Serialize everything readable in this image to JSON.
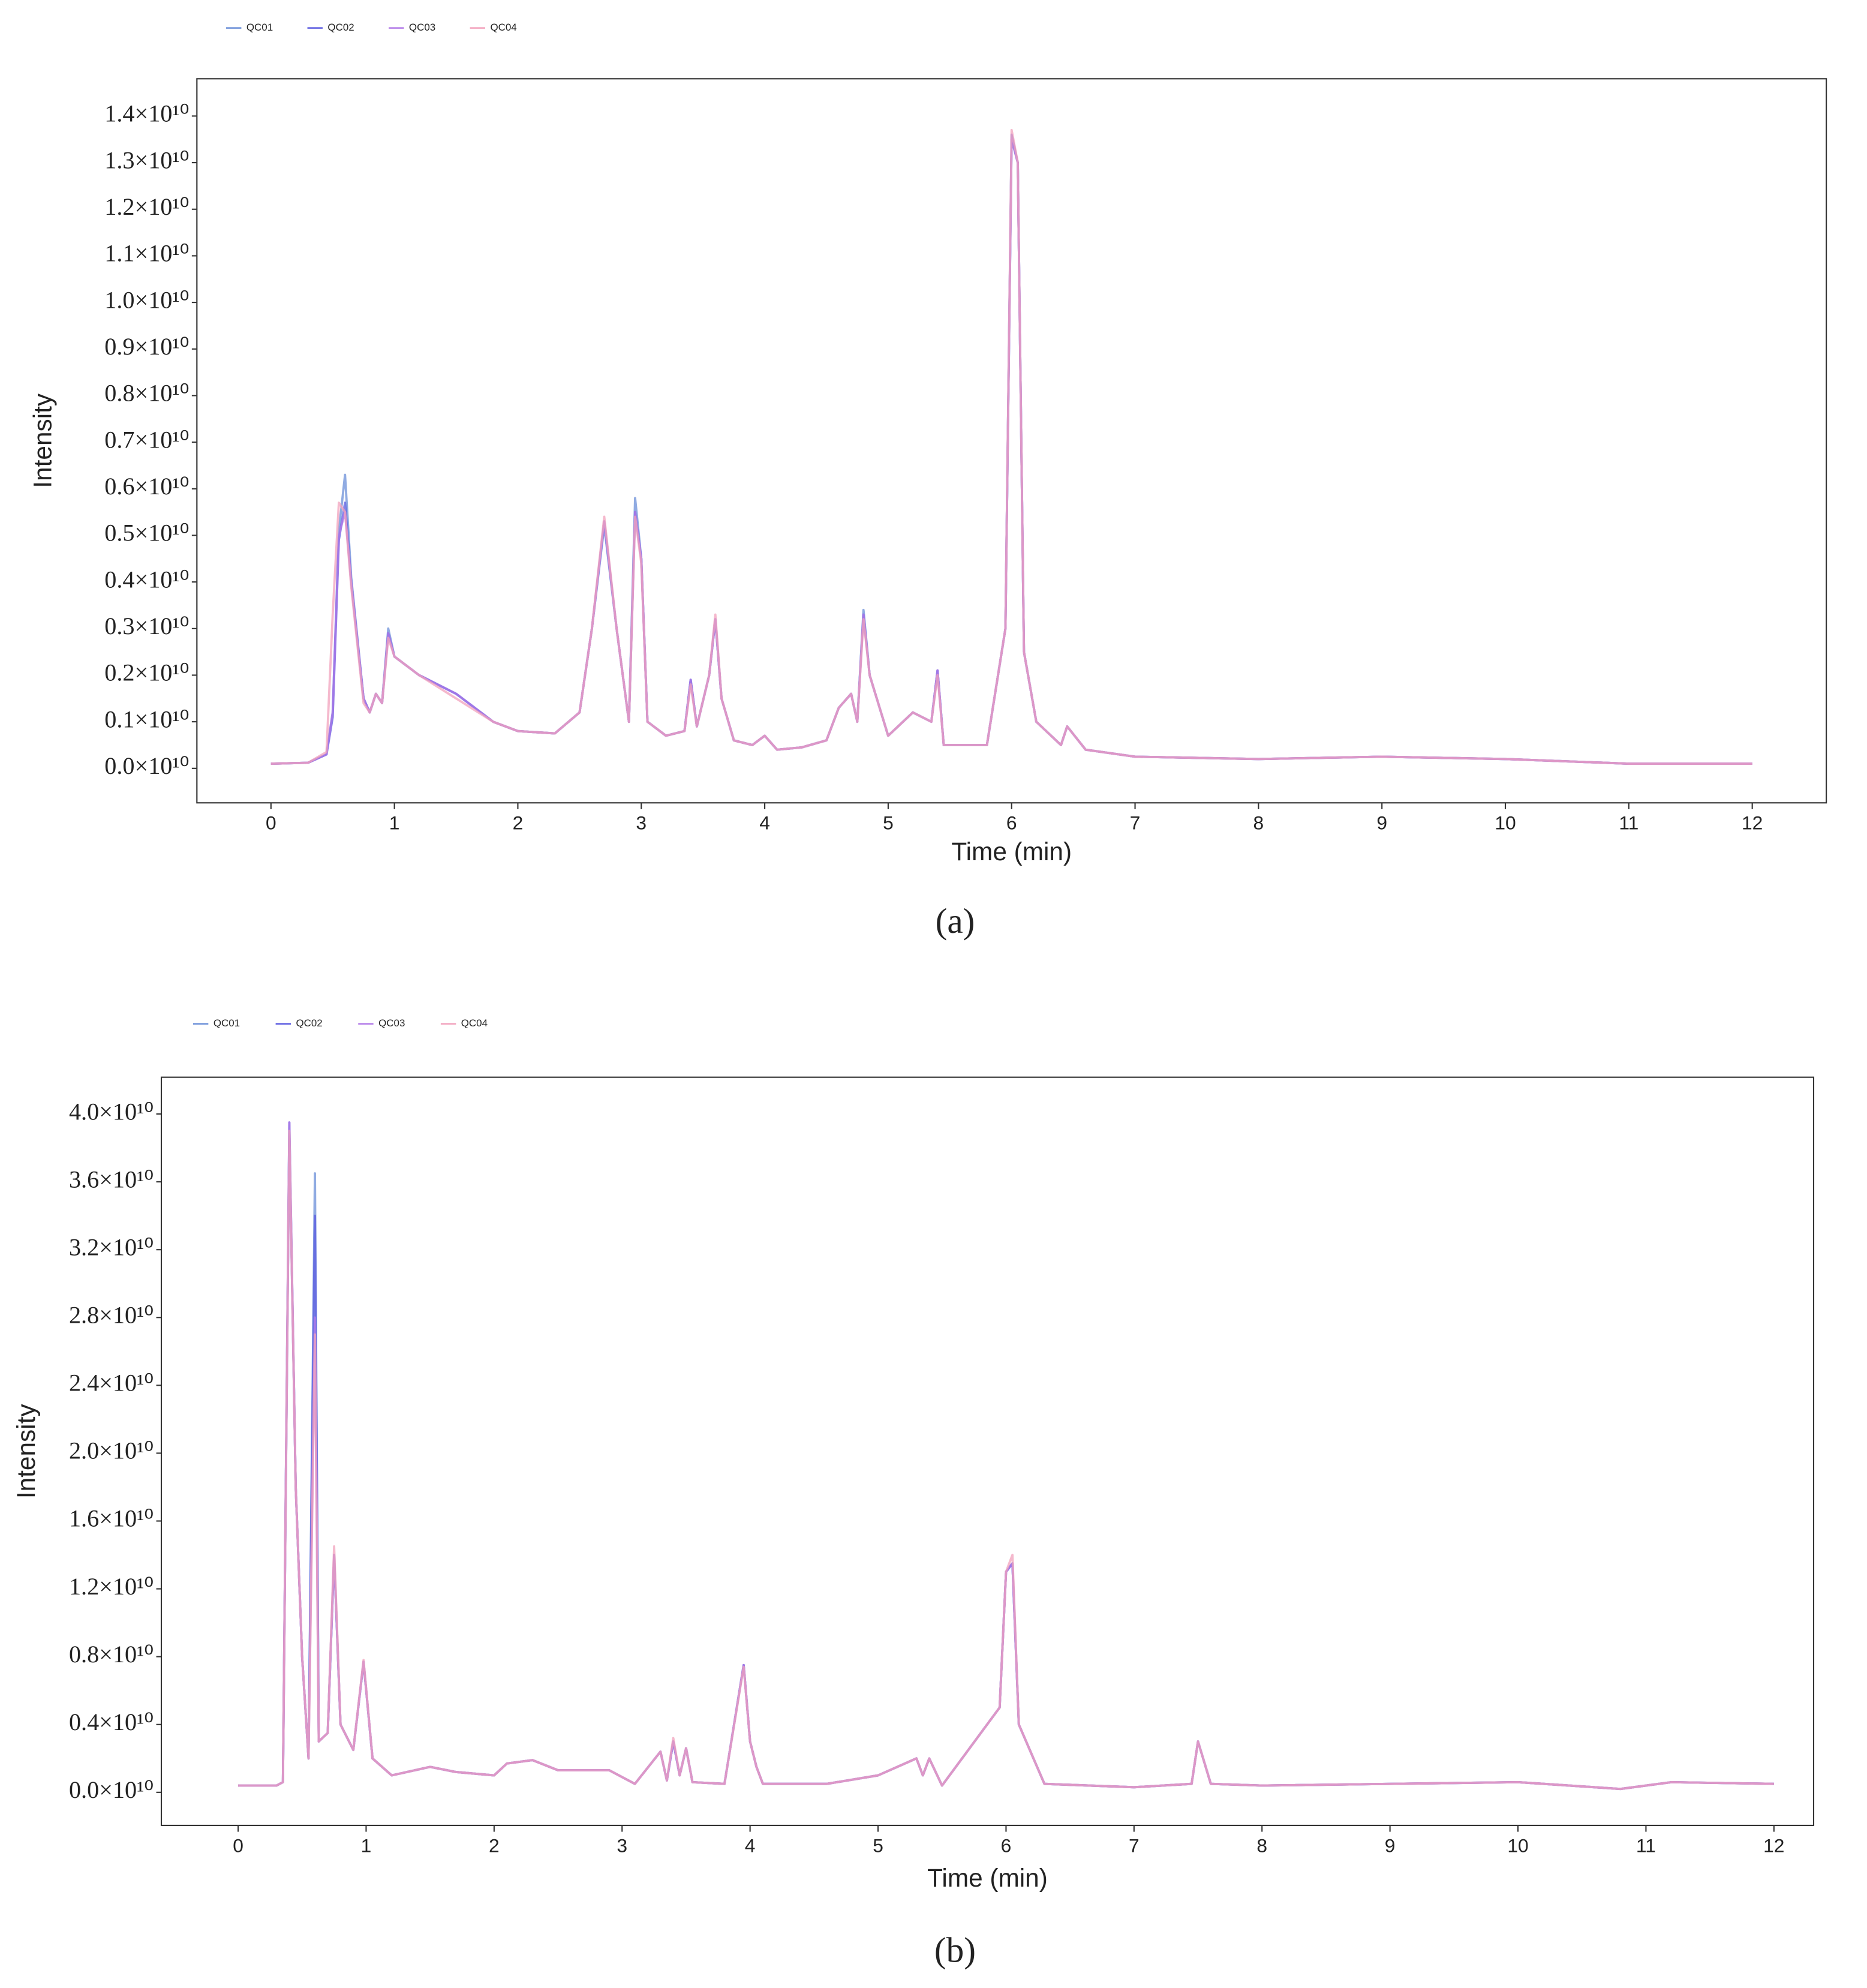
{
  "chart_data": [
    {
      "type": "line",
      "caption": "(a)",
      "x_label": "Time (min)",
      "y_label": "Intensity",
      "legend": "top-left",
      "xlim": [
        -0.6,
        12.6
      ],
      "ylim": [
        -740000000.0,
        14800000000.0
      ],
      "xticks": [
        0,
        1,
        2,
        3,
        4,
        5,
        6,
        7,
        8,
        9,
        10,
        11,
        12
      ],
      "yticks": [
        {
          "value": 0,
          "label": "0.0×10¹⁰"
        },
        {
          "value": 1000000000.0,
          "label": "0.1×10¹⁰"
        },
        {
          "value": 2000000000.0,
          "label": "0.2×10¹⁰"
        },
        {
          "value": 3000000000.0,
          "label": "0.3×10¹⁰"
        },
        {
          "value": 4000000000.0,
          "label": "0.4×10¹⁰"
        },
        {
          "value": 5000000000.0,
          "label": "0.5×10¹⁰"
        },
        {
          "value": 6000000000.0,
          "label": "0.6×10¹⁰"
        },
        {
          "value": 7000000000.0,
          "label": "0.7×10¹⁰"
        },
        {
          "value": 8000000000.0,
          "label": "0.8×10¹⁰"
        },
        {
          "value": 9000000000.0,
          "label": "0.9×10¹⁰"
        },
        {
          "value": 10000000000.0,
          "label": "1.0×10¹⁰"
        },
        {
          "value": 11000000000.0,
          "label": "1.1×10¹⁰"
        },
        {
          "value": 12000000000.0,
          "label": "1.2×10¹⁰"
        },
        {
          "value": 13000000000.0,
          "label": "1.3×10¹⁰"
        },
        {
          "value": 14000000000.0,
          "label": "1.4×10¹⁰"
        }
      ],
      "x": [
        0,
        0.3,
        0.45,
        0.5,
        0.55,
        0.6,
        0.65,
        0.75,
        0.8,
        0.85,
        0.9,
        0.95,
        1.0,
        1.2,
        1.5,
        1.8,
        2.0,
        2.3,
        2.5,
        2.6,
        2.7,
        2.8,
        2.9,
        2.95,
        3.0,
        3.05,
        3.2,
        3.35,
        3.4,
        3.45,
        3.55,
        3.6,
        3.65,
        3.75,
        3.9,
        4.0,
        4.1,
        4.3,
        4.5,
        4.6,
        4.7,
        4.75,
        4.8,
        4.85,
        5.0,
        5.2,
        5.35,
        5.4,
        5.45,
        5.8,
        5.95,
        6.0,
        6.05,
        6.1,
        6.2,
        6.4,
        6.45,
        6.6,
        7,
        8,
        9,
        10,
        11,
        12
      ],
      "series": [
        {
          "name": "QC01",
          "color": "#6b8fd8",
          "values": [
            100000000.0,
            120000000.0,
            300000000.0,
            1200000000.0,
            5100000000.0,
            6300000000.0,
            4100000000.0,
            1500000000.0,
            1200000000.0,
            1600000000.0,
            1400000000.0,
            3000000000.0,
            2400000000.0,
            2000000000.0,
            1600000000.0,
            1000000000.0,
            800000000.0,
            750000000.0,
            1200000000.0,
            3000000000.0,
            5200000000.0,
            3000000000.0,
            1000000000.0,
            5800000000.0,
            4500000000.0,
            1000000000.0,
            700000000.0,
            800000000.0,
            1900000000.0,
            900000000.0,
            2000000000.0,
            3200000000.0,
            1500000000.0,
            600000000.0,
            500000000.0,
            700000000.0,
            400000000.0,
            450000000.0,
            600000000.0,
            1300000000.0,
            1600000000.0,
            1000000000.0,
            3400000000.0,
            2000000000.0,
            700000000.0,
            1200000000.0,
            1000000000.0,
            2100000000.0,
            500000000.0,
            500000000.0,
            3000000000.0,
            13500000000.0,
            13000000000.0,
            2500000000.0,
            1000000000.0,
            500000000.0,
            900000000.0,
            400000000.0,
            250000000.0,
            200000000.0,
            250000000.0,
            200000000.0,
            100000000.0,
            100000000.0
          ]
        },
        {
          "name": "QC02",
          "color": "#5b5be0",
          "values": [
            100000000.0,
            120000000.0,
            300000000.0,
            1100000000.0,
            4900000000.0,
            5700000000.0,
            4000000000.0,
            1500000000.0,
            1200000000.0,
            1600000000.0,
            1400000000.0,
            2900000000.0,
            2400000000.0,
            2000000000.0,
            1600000000.0,
            1000000000.0,
            800000000.0,
            750000000.0,
            1200000000.0,
            3000000000.0,
            5300000000.0,
            3000000000.0,
            1000000000.0,
            5500000000.0,
            4500000000.0,
            1000000000.0,
            700000000.0,
            800000000.0,
            1900000000.0,
            900000000.0,
            2000000000.0,
            3200000000.0,
            1500000000.0,
            600000000.0,
            500000000.0,
            700000000.0,
            400000000.0,
            450000000.0,
            600000000.0,
            1300000000.0,
            1600000000.0,
            1000000000.0,
            3300000000.0,
            2000000000.0,
            700000000.0,
            1200000000.0,
            1000000000.0,
            2100000000.0,
            500000000.0,
            500000000.0,
            3000000000.0,
            13600000000.0,
            13000000000.0,
            2500000000.0,
            1000000000.0,
            500000000.0,
            900000000.0,
            400000000.0,
            250000000.0,
            200000000.0,
            250000000.0,
            200000000.0,
            100000000.0,
            100000000.0
          ]
        },
        {
          "name": "QC03",
          "color": "#b27ae8",
          "values": [
            100000000.0,
            120000000.0,
            300000000.0,
            1200000000.0,
            5000000000.0,
            5500000000.0,
            4000000000.0,
            1500000000.0,
            1200000000.0,
            1600000000.0,
            1400000000.0,
            2900000000.0,
            2400000000.0,
            2000000000.0,
            1600000000.0,
            1000000000.0,
            800000000.0,
            750000000.0,
            1200000000.0,
            3000000000.0,
            5300000000.0,
            3000000000.0,
            1000000000.0,
            5500000000.0,
            4500000000.0,
            1000000000.0,
            700000000.0,
            800000000.0,
            1900000000.0,
            900000000.0,
            2000000000.0,
            3200000000.0,
            1500000000.0,
            600000000.0,
            500000000.0,
            700000000.0,
            400000000.0,
            450000000.0,
            600000000.0,
            1300000000.0,
            1600000000.0,
            1000000000.0,
            3300000000.0,
            2000000000.0,
            700000000.0,
            1200000000.0,
            1000000000.0,
            2100000000.0,
            500000000.0,
            500000000.0,
            3000000000.0,
            13500000000.0,
            13000000000.0,
            2500000000.0,
            1000000000.0,
            500000000.0,
            900000000.0,
            400000000.0,
            250000000.0,
            200000000.0,
            250000000.0,
            200000000.0,
            100000000.0,
            100000000.0
          ]
        },
        {
          "name": "QC04",
          "color": "#f2a2bc",
          "values": [
            100000000.0,
            120000000.0,
            350000000.0,
            3300000000.0,
            5700000000.0,
            5500000000.0,
            3900000000.0,
            1400000000.0,
            1200000000.0,
            1600000000.0,
            1400000000.0,
            2800000000.0,
            2400000000.0,
            2000000000.0,
            1500000000.0,
            1000000000.0,
            800000000.0,
            750000000.0,
            1200000000.0,
            3000000000.0,
            5400000000.0,
            3000000000.0,
            1000000000.0,
            5400000000.0,
            4400000000.0,
            1000000000.0,
            700000000.0,
            800000000.0,
            1800000000.0,
            900000000.0,
            2000000000.0,
            3300000000.0,
            1500000000.0,
            600000000.0,
            500000000.0,
            700000000.0,
            400000000.0,
            450000000.0,
            600000000.0,
            1300000000.0,
            1600000000.0,
            1000000000.0,
            3200000000.0,
            2000000000.0,
            700000000.0,
            1200000000.0,
            1000000000.0,
            2000000000.0,
            500000000.0,
            500000000.0,
            3000000000.0,
            13700000000.0,
            13000000000.0,
            2500000000.0,
            1000000000.0,
            500000000.0,
            900000000.0,
            400000000.0,
            250000000.0,
            200000000.0,
            250000000.0,
            200000000.0,
            100000000.0,
            100000000.0
          ]
        }
      ]
    },
    {
      "type": "line",
      "caption": "(b)",
      "x_label": "Time (min)",
      "y_label": "Intensity",
      "legend": "top-left",
      "xlim": [
        -0.6,
        12.31
      ],
      "ylim": [
        -1950000000.0,
        42170000000.0
      ],
      "xticks": [
        0,
        1,
        2,
        3,
        4,
        5,
        6,
        7,
        8,
        9,
        10,
        11,
        12
      ],
      "yticks": [
        {
          "value": 0,
          "label": "0.0×10¹⁰"
        },
        {
          "value": 4000000000.0,
          "label": "0.4×10¹⁰"
        },
        {
          "value": 8000000000.0,
          "label": "0.8×10¹⁰"
        },
        {
          "value": 12000000000.0,
          "label": "1.2×10¹⁰"
        },
        {
          "value": 16000000000.0,
          "label": "1.6×10¹⁰"
        },
        {
          "value": 20000000000.0,
          "label": "2.0×10¹⁰"
        },
        {
          "value": 24000000000.0,
          "label": "2.4×10¹⁰"
        },
        {
          "value": 28000000000.0,
          "label": "2.8×10¹⁰"
        },
        {
          "value": 32000000000.0,
          "label": "3.2×10¹⁰"
        },
        {
          "value": 36000000000.0,
          "label": "3.6×10¹⁰"
        },
        {
          "value": 40000000000.0,
          "label": "4.0×10¹⁰"
        }
      ],
      "x": [
        0,
        0.3,
        0.35,
        0.4,
        0.45,
        0.5,
        0.55,
        0.6,
        0.63,
        0.7,
        0.75,
        0.8,
        0.9,
        0.98,
        1.05,
        1.2,
        1.5,
        1.7,
        2.0,
        2.1,
        2.3,
        2.5,
        2.9,
        3.1,
        3.3,
        3.35,
        3.4,
        3.45,
        3.5,
        3.55,
        3.8,
        3.95,
        4.0,
        4.05,
        4.1,
        4.6,
        5.0,
        5.3,
        5.35,
        5.4,
        5.5,
        5.95,
        6.0,
        6.05,
        6.1,
        6.3,
        7.0,
        7.45,
        7.5,
        7.6,
        8,
        10,
        10.8,
        11.2,
        12
      ],
      "series": [
        {
          "name": "QC01",
          "color": "#6b8fd8",
          "values": [
            400000000.0,
            400000000.0,
            600000000.0,
            39000000000.0,
            18000000000.0,
            8000000000.0,
            2000000000.0,
            36500000000.0,
            3000000000.0,
            3500000000.0,
            14000000000.0,
            4000000000.0,
            2500000000.0,
            7700000000.0,
            2000000000.0,
            1000000000.0,
            1500000000.0,
            1200000000.0,
            1000000000.0,
            1700000000.0,
            1900000000.0,
            1300000000.0,
            1300000000.0,
            500000000.0,
            2400000000.0,
            700000000.0,
            3000000000.0,
            1000000000.0,
            2600000000.0,
            600000000.0,
            500000000.0,
            7500000000.0,
            3000000000.0,
            1500000000.0,
            500000000.0,
            500000000.0,
            1000000000.0,
            2000000000.0,
            1000000000.0,
            2000000000.0,
            400000000.0,
            5000000000.0,
            13000000000.0,
            13500000000.0,
            4000000000.0,
            500000000.0,
            300000000.0,
            500000000.0,
            3000000000.0,
            500000000.0,
            400000000.0,
            600000000.0,
            200000000.0,
            600000000.0,
            500000000.0
          ]
        },
        {
          "name": "QC02",
          "color": "#5b5be0",
          "values": [
            400000000.0,
            400000000.0,
            600000000.0,
            39500000000.0,
            18000000000.0,
            8000000000.0,
            2000000000.0,
            34000000000.0,
            3000000000.0,
            3500000000.0,
            14000000000.0,
            4000000000.0,
            2500000000.0,
            7700000000.0,
            2000000000.0,
            1000000000.0,
            1500000000.0,
            1200000000.0,
            1000000000.0,
            1700000000.0,
            1900000000.0,
            1300000000.0,
            1300000000.0,
            500000000.0,
            2400000000.0,
            700000000.0,
            3000000000.0,
            1000000000.0,
            2600000000.0,
            600000000.0,
            500000000.0,
            7500000000.0,
            3000000000.0,
            1500000000.0,
            500000000.0,
            500000000.0,
            1000000000.0,
            2000000000.0,
            1000000000.0,
            2000000000.0,
            400000000.0,
            5000000000.0,
            13000000000.0,
            13500000000.0,
            4000000000.0,
            500000000.0,
            300000000.0,
            500000000.0,
            3000000000.0,
            500000000.0,
            400000000.0,
            600000000.0,
            200000000.0,
            600000000.0,
            500000000.0
          ]
        },
        {
          "name": "QC03",
          "color": "#b27ae8",
          "values": [
            400000000.0,
            400000000.0,
            600000000.0,
            39500000000.0,
            18000000000.0,
            8000000000.0,
            2000000000.0,
            28000000000.0,
            3000000000.0,
            3500000000.0,
            14000000000.0,
            4000000000.0,
            2500000000.0,
            7700000000.0,
            2000000000.0,
            1000000000.0,
            1500000000.0,
            1200000000.0,
            1000000000.0,
            1700000000.0,
            1900000000.0,
            1300000000.0,
            1300000000.0,
            500000000.0,
            2400000000.0,
            700000000.0,
            3000000000.0,
            1000000000.0,
            2600000000.0,
            600000000.0,
            500000000.0,
            7500000000.0,
            3000000000.0,
            1500000000.0,
            500000000.0,
            500000000.0,
            1000000000.0,
            2000000000.0,
            1000000000.0,
            2000000000.0,
            400000000.0,
            5000000000.0,
            13000000000.0,
            13500000000.0,
            4000000000.0,
            500000000.0,
            300000000.0,
            500000000.0,
            3000000000.0,
            500000000.0,
            400000000.0,
            600000000.0,
            200000000.0,
            600000000.0,
            500000000.0
          ]
        },
        {
          "name": "QC04",
          "color": "#f2a2bc",
          "values": [
            400000000.0,
            400000000.0,
            600000000.0,
            39000000000.0,
            18000000000.0,
            8000000000.0,
            2000000000.0,
            27000000000.0,
            3000000000.0,
            3500000000.0,
            14500000000.0,
            4000000000.0,
            2500000000.0,
            7800000000.0,
            2000000000.0,
            1000000000.0,
            1500000000.0,
            1200000000.0,
            1000000000.0,
            1700000000.0,
            1900000000.0,
            1300000000.0,
            1300000000.0,
            500000000.0,
            2400000000.0,
            700000000.0,
            3200000000.0,
            1000000000.0,
            2600000000.0,
            600000000.0,
            500000000.0,
            7400000000.0,
            3000000000.0,
            1500000000.0,
            500000000.0,
            500000000.0,
            1000000000.0,
            2000000000.0,
            1000000000.0,
            2000000000.0,
            400000000.0,
            5000000000.0,
            13000000000.0,
            14000000000.0,
            4000000000.0,
            500000000.0,
            300000000.0,
            500000000.0,
            3000000000.0,
            500000000.0,
            400000000.0,
            600000000.0,
            200000000.0,
            600000000.0,
            500000000.0
          ]
        }
      ]
    }
  ]
}
